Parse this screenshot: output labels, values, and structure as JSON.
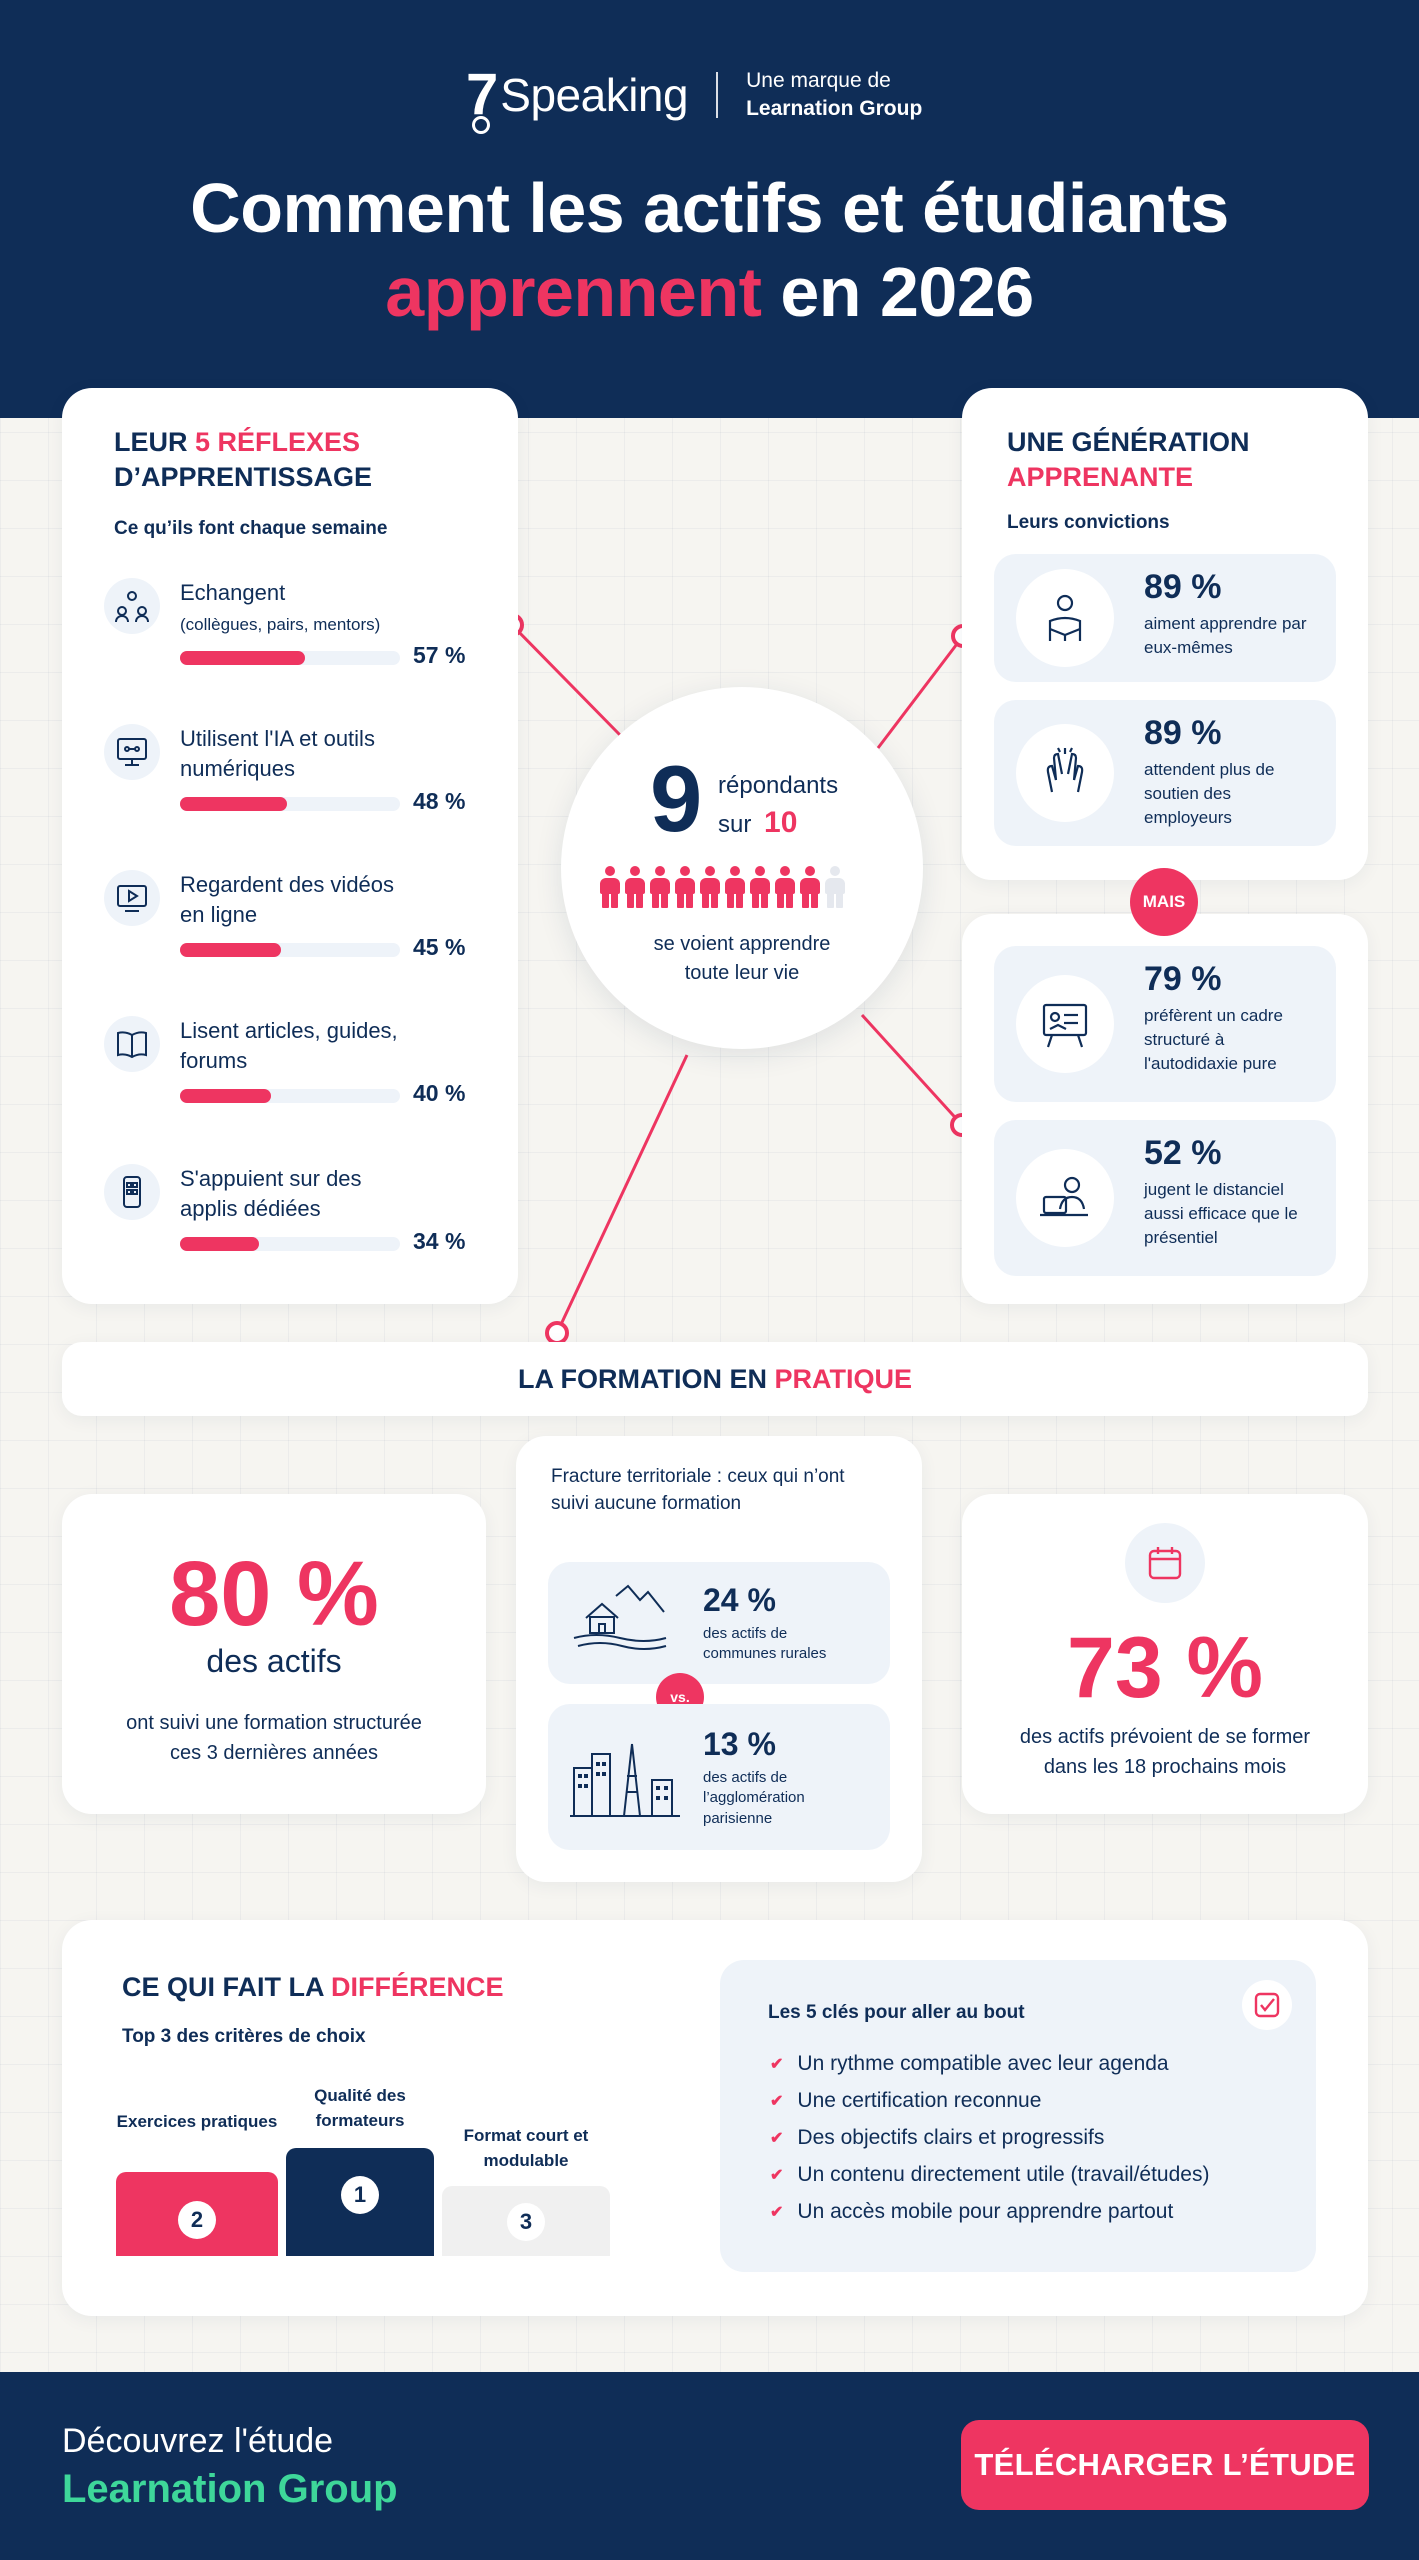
{
  "header": {
    "brand": "Speaking",
    "brand_mark": "7",
    "tagline_1": "Une marque de",
    "tagline_2": "Learnation Group",
    "title_line1": "Comment les actifs et étudiants",
    "title_highlight": "apprennent",
    "title_rest": " en 2026"
  },
  "reflexes": {
    "title_pre": "LEUR ",
    "title_highlight": "5 RÉFLEXES",
    "title_line2": "D’APPRENTISSAGE",
    "subtitle": "Ce qu’ils font chaque semaine",
    "items": [
      {
        "label": "Echangent",
        "detail": "(collègues, pairs, mentors)",
        "percent": 57,
        "percent_label": "57 %",
        "icon": "people-network-icon"
      },
      {
        "label": "Utilisent l'IA et outils numériques",
        "detail": "",
        "percent": 48,
        "percent_label": "48 %",
        "icon": "monitor-ai-icon"
      },
      {
        "label": "Regardent des vidéos en ligne",
        "detail": "",
        "percent": 45,
        "percent_label": "45 %",
        "icon": "video-play-icon"
      },
      {
        "label": "Lisent articles, guides, forums",
        "detail": "",
        "percent": 40,
        "percent_label": "40 %",
        "icon": "open-book-icon"
      },
      {
        "label": "S'appuient sur des applis dédiées",
        "detail": "",
        "percent": 34,
        "percent_label": "34 %",
        "icon": "smartphone-apps-icon"
      }
    ]
  },
  "center": {
    "big_number": "9",
    "respondants": "répondants",
    "sur": "sur",
    "ten": "10",
    "people_filled": 9,
    "people_total": 10,
    "caption_1": "se voient apprendre",
    "caption_2": "toute leur vie"
  },
  "generation": {
    "title_line1": "UNE GÉNÉRATION",
    "title_highlight": "APPRENANTE",
    "subtitle": "Leurs convictions",
    "mais": "MAIS",
    "items": [
      {
        "value": "89 %",
        "text": "aiment apprendre par eux-mêmes",
        "icon": "reading-person-icon"
      },
      {
        "value": "89 %",
        "text": "attendent plus de soutien des employeurs",
        "icon": "high-five-icon"
      },
      {
        "value": "79 %",
        "text": "préfèrent un cadre structuré à l'autodidaxie pure",
        "icon": "whiteboard-icon"
      },
      {
        "value": "52 %",
        "text": "jugent le distanciel aussi efficace que le présentiel",
        "icon": "laptop-user-icon"
      }
    ]
  },
  "practice": {
    "title_pre": "LA FORMATION EN ",
    "title_highlight": "PRATIQUE",
    "left_value": "80 %",
    "left_label": "des actifs",
    "left_caption": "ont suivi une formation structurée ces 3 dernières années",
    "fracture_title": "Fracture territoriale : ceux qui n’ont suivi aucune formation",
    "rural_value": "24 %",
    "rural_text": "des actifs de communes rurales",
    "vs": "vs.",
    "paris_value": "13 %",
    "paris_text": "des actifs de l’agglomération parisienne",
    "right_value": "73 %",
    "right_caption": "des actifs prévoient de se former dans les 18 prochains mois"
  },
  "difference": {
    "title_pre": "CE QUI FAIT LA ",
    "title_highlight": "DIFFÉRENCE",
    "subtitle": "Top 3 des critères de choix",
    "podium": [
      {
        "rank": "2",
        "label": "Exercices pratiques"
      },
      {
        "rank": "1",
        "label": "Qualité des formateurs"
      },
      {
        "rank": "3",
        "label": "Format court et modulable"
      }
    ],
    "keys_title": "Les 5 clés pour aller au bout",
    "keys": [
      "Un rythme compatible avec leur agenda",
      "Une certification reconnue",
      "Des objectifs clairs et progressifs",
      "Un contenu directement utile (travail/études)",
      "Un accès mobile pour apprendre partout"
    ]
  },
  "footer": {
    "line1": "Découvrez l'étude",
    "line2": "Learnation Group",
    "cta": "TÉLÉCHARGER L’ÉTUDE"
  },
  "colors": {
    "navy": "#0f2d57",
    "pink": "#ee3561",
    "green": "#3ed79a",
    "light_blue": "#eef3f9"
  }
}
